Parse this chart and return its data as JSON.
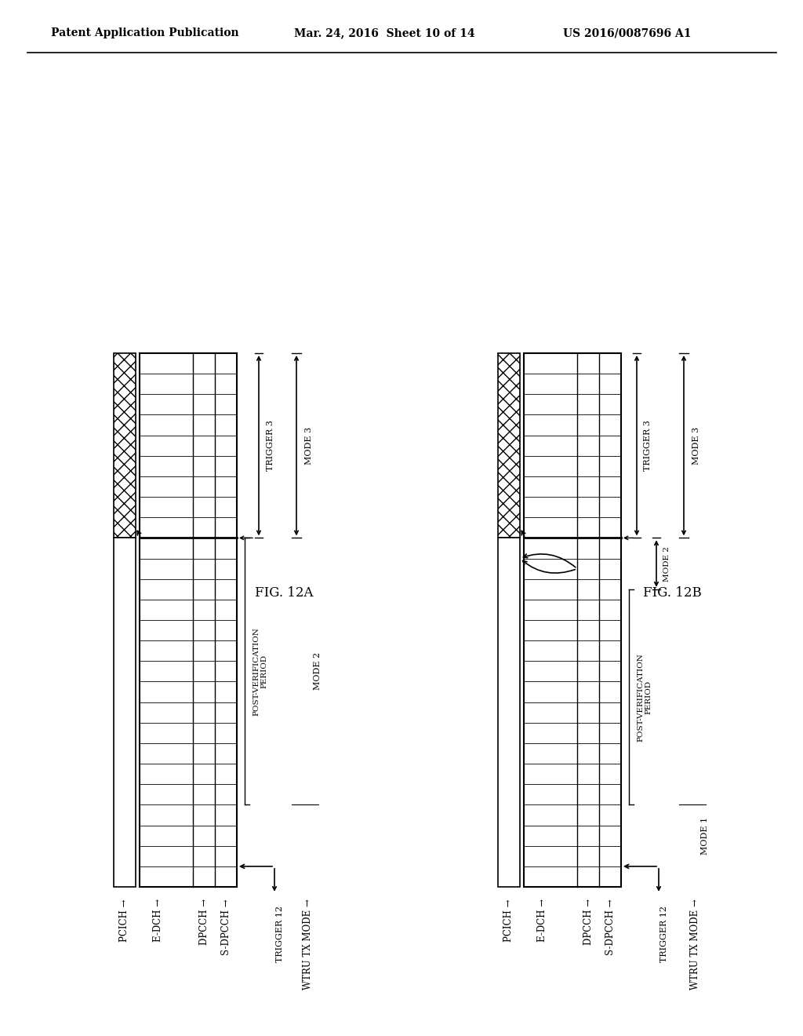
{
  "header_left": "Patent Application Publication",
  "header_mid": "Mar. 24, 2016  Sheet 10 of 14",
  "header_right": "US 2016/0087696 A1",
  "fig_a_label": "FIG. 12A",
  "fig_b_label": "FIG. 12B",
  "background": "#ffffff",
  "channels": [
    "PCICH →",
    "E-DCH →",
    "DPCCH →",
    "S-DPCCH →"
  ],
  "wtru_label": "WTRU TX MODE →",
  "trigger3_label": "TRIGGER 3",
  "trigger12_label": "TRIGGER 12",
  "mode2_label": "MODE 2",
  "mode3_label": "MODE 3",
  "mode1_label": "MODE 1",
  "post_verif_label": "POST-VERIFICATION\nPERIOD"
}
